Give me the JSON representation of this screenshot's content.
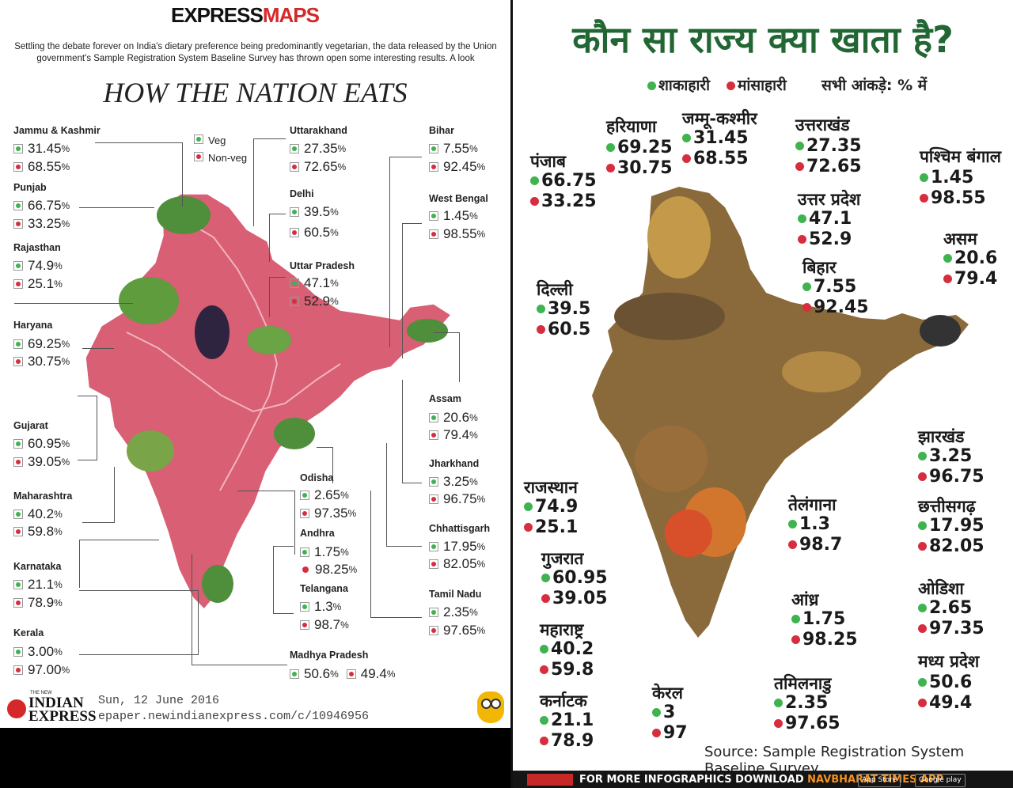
{
  "left": {
    "logo": {
      "express": "EXPRESS",
      "maps": "MAPS"
    },
    "intro": "Settling the debate forever on India's dietary preference being predominantly vegetarian, the data released by the Union government's Sample Registration System Baseline Survey has thrown open some interesting results. A look",
    "title": "HOW THE NATION EATS",
    "legend": {
      "veg": "Veg",
      "nonveg": "Non-veg"
    },
    "states": [
      {
        "name": "Jammu & Kashmir",
        "veg": "31.45",
        "nonveg": "68.55"
      },
      {
        "name": "Punjab",
        "veg": "66.75",
        "nonveg": "33.25"
      },
      {
        "name": "Rajasthan",
        "veg": "74.9",
        "nonveg": "25.1"
      },
      {
        "name": "Haryana",
        "veg": "69.25",
        "nonveg": "30.75"
      },
      {
        "name": "Gujarat",
        "veg": "60.95",
        "nonveg": "39.05"
      },
      {
        "name": "Maharashtra",
        "veg": "40.2",
        "nonveg": "59.8"
      },
      {
        "name": "Karnataka",
        "veg": "21.1",
        "nonveg": "78.9"
      },
      {
        "name": "Kerala",
        "veg": "3.00",
        "nonveg": "97.00"
      },
      {
        "name": "Uttarakhand",
        "veg": "27.35",
        "nonveg": "72.65"
      },
      {
        "name": "Delhi",
        "veg": "39.5",
        "nonveg": "60.5"
      },
      {
        "name": "Uttar Pradesh",
        "veg": "47.1",
        "nonveg": "52.9"
      },
      {
        "name": "Odisha",
        "veg": "2.65",
        "nonveg": "97.35"
      },
      {
        "name": "Andhra",
        "veg": "1.75",
        "nonveg": "98.25"
      },
      {
        "name": "Telangana",
        "veg": "1.3",
        "nonveg": "98.7"
      },
      {
        "name": "Madhya Pradesh",
        "veg": "50.6",
        "nonveg": "49.4"
      },
      {
        "name": "Bihar",
        "veg": "7.55",
        "nonveg": "92.45"
      },
      {
        "name": "West Bengal",
        "veg": "1.45",
        "nonveg": "98.55"
      },
      {
        "name": "Assam",
        "veg": "20.6",
        "nonveg": "79.4"
      },
      {
        "name": "Jharkhand",
        "veg": "3.25",
        "nonveg": "96.75"
      },
      {
        "name": "Chhattisgarh",
        "veg": "17.95",
        "nonveg": "82.05"
      },
      {
        "name": "Tamil Nadu",
        "veg": "2.35",
        "nonveg": "97.65"
      }
    ],
    "percent_sign": "%",
    "paper_the_new": "THE NEW",
    "paper_name_1": "INDIAN",
    "paper_name_2": "EXPRESS",
    "date": "Sun, 12 June 2016",
    "url": "epaper.newindianexpress.com/c/10946956"
  },
  "right": {
    "title": "कौन सा राज्य क्या खाता है?",
    "legend": {
      "veg": "शाकाहारी",
      "nonveg": "मांसाहारी",
      "note": "सभी आंकड़े: % में"
    },
    "states": [
      {
        "name": "पंजाब",
        "veg": "66.75",
        "nonveg": "33.25"
      },
      {
        "name": "हरियाणा",
        "veg": "69.25",
        "nonveg": "30.75"
      },
      {
        "name": "जम्मू-कश्मीर",
        "veg": "31.45",
        "nonveg": "68.55"
      },
      {
        "name": "उत्तराखंड",
        "veg": "27.35",
        "nonveg": "72.65"
      },
      {
        "name": "पश्चिम बंगाल",
        "veg": "1.45",
        "nonveg": "98.55"
      },
      {
        "name": "उत्तर प्रदेश",
        "veg": "47.1",
        "nonveg": "52.9"
      },
      {
        "name": "असम",
        "veg": "20.6",
        "nonveg": "79.4"
      },
      {
        "name": "बिहार",
        "veg": "7.55",
        "nonveg": "92.45"
      },
      {
        "name": "दिल्ली",
        "veg": "39.5",
        "nonveg": "60.5"
      },
      {
        "name": "झारखंड",
        "veg": "3.25",
        "nonveg": "96.75"
      },
      {
        "name": "राजस्थान",
        "veg": "74.9",
        "nonveg": "25.1"
      },
      {
        "name": "तेलंगाना",
        "veg": "1.3",
        "nonveg": "98.7"
      },
      {
        "name": "छत्तीसगढ़",
        "veg": "17.95",
        "nonveg": "82.05"
      },
      {
        "name": "गुजरात",
        "veg": "60.95",
        "nonveg": "39.05"
      },
      {
        "name": "ओडिशा",
        "veg": "2.65",
        "nonveg": "97.35"
      },
      {
        "name": "आंध्र",
        "veg": "1.75",
        "nonveg": "98.25"
      },
      {
        "name": "महाराष्ट्र",
        "veg": "40.2",
        "nonveg": "59.8"
      },
      {
        "name": "मध्य प्रदेश",
        "veg": "50.6",
        "nonveg": "49.4"
      },
      {
        "name": "केरल",
        "veg": "3",
        "nonveg": "97"
      },
      {
        "name": "तमिलनाडु",
        "veg": "2.35",
        "nonveg": "97.65"
      },
      {
        "name": "कर्नाटक",
        "veg": "21.1",
        "nonveg": "78.9"
      }
    ],
    "source": "Source: Sample Registration System Baseline Survey",
    "footer_prefix": "FOR MORE INFOGRAPHICS DOWNLOAD ",
    "footer_app": "NAVBHARAT TIMES APP",
    "store_1": "App Store",
    "store_2": "Google play"
  },
  "colors": {
    "veg": "#3fb34f",
    "nonveg": "#d62e3e",
    "hindi_title": "#226633",
    "brand_red": "#d62828"
  }
}
